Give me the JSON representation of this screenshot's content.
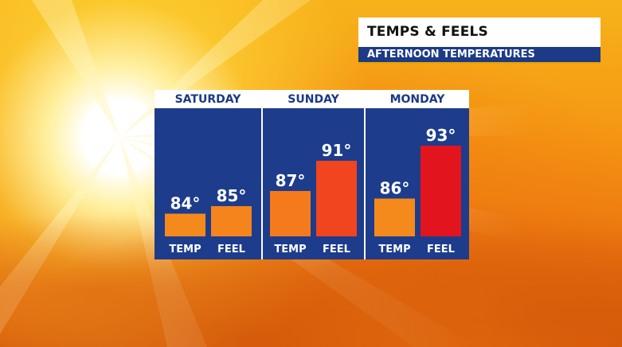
{
  "header": {
    "title": "TEMPS & FEELS",
    "subtitle": "AFTERNOON TEMPERATURES"
  },
  "colors": {
    "panel_blue": "#1d3c8c",
    "header_text_blue": "#1b3a85",
    "subtitle_blue": "#1c3a86",
    "temp_orange": "#f58a1c",
    "feel_orange": "#f5841c",
    "feel_red_orange": "#f0451e",
    "feel_red": "#e2141e"
  },
  "chart_data": {
    "type": "bar",
    "title": "TEMPS & FEELS",
    "subtitle": "AFTERNOON TEMPERATURES",
    "unit": "°",
    "categories": [
      "SATURDAY",
      "SUNDAY",
      "MONDAY"
    ],
    "bar_labels": [
      "TEMP",
      "FEEL"
    ],
    "series": [
      {
        "name": "TEMP",
        "values": [
          84,
          87,
          86
        ]
      },
      {
        "name": "FEEL",
        "values": [
          85,
          91,
          93
        ]
      }
    ],
    "bar_colors": [
      [
        "#f58a1c",
        "#f5841c"
      ],
      [
        "#f57a1c",
        "#f0451e"
      ],
      [
        "#f58a1c",
        "#e2141e"
      ]
    ],
    "grid": false
  }
}
